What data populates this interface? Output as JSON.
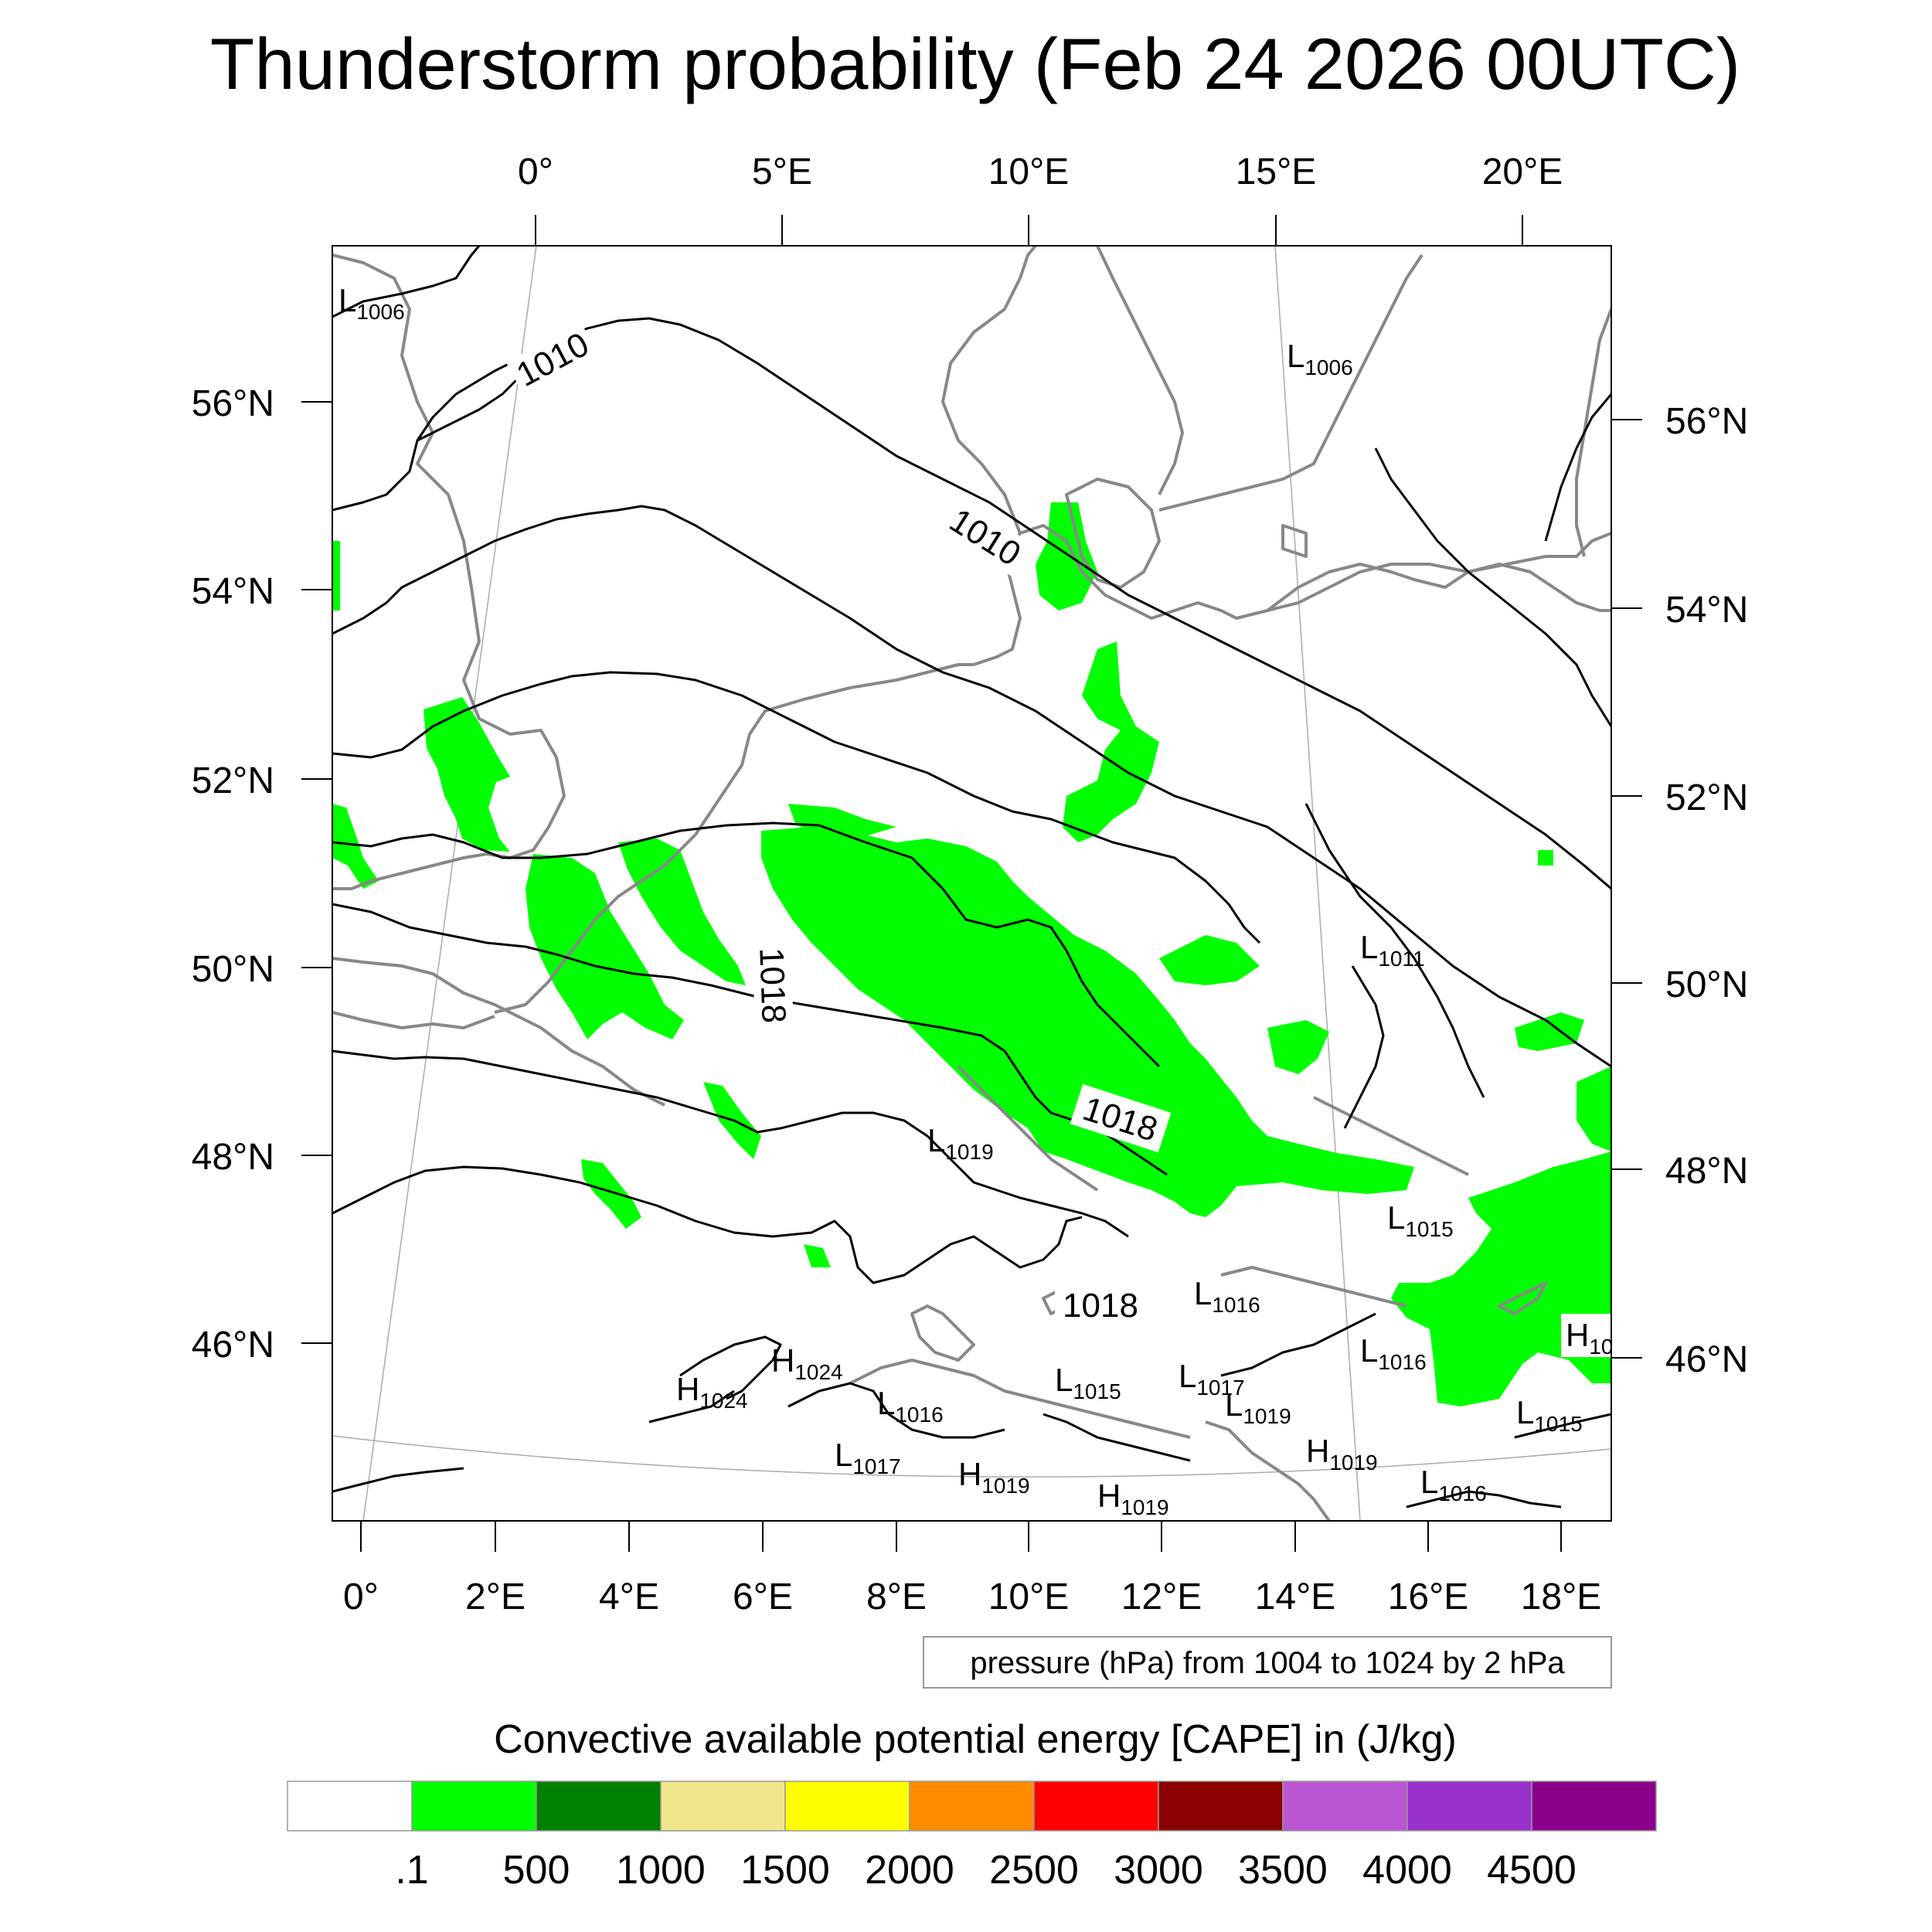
{
  "title": "Thunderstorm probability (Feb 24 2026 00UTC)",
  "top_lon_labels": [
    "0°",
    "5°E",
    "10°E",
    "15°E",
    "20°E"
  ],
  "bottom_lon_labels": [
    "0°",
    "2°E",
    "4°E",
    "6°E",
    "8°E",
    "10°E",
    "12°E",
    "14°E",
    "16°E",
    "18°E"
  ],
  "left_lat_labels": [
    "56°N",
    "54°N",
    "52°N",
    "50°N",
    "48°N",
    "46°N"
  ],
  "right_lat_labels": [
    "56°N",
    "54°N",
    "52°N",
    "50°N",
    "48°N",
    "46°N"
  ],
  "isobar_labels": [
    "1010",
    "1010",
    "1018",
    "1018",
    "1018"
  ],
  "pressure_centers": [
    {
      "letter": "L",
      "value": "1006"
    },
    {
      "letter": "L",
      "value": "1006"
    },
    {
      "letter": "L",
      "value": "1011"
    },
    {
      "letter": "L",
      "value": "1019"
    },
    {
      "letter": "L",
      "value": "1015"
    },
    {
      "letter": "L",
      "value": "1016"
    },
    {
      "letter": "H",
      "value": "1024"
    },
    {
      "letter": "H",
      "value": "1024"
    },
    {
      "letter": "L",
      "value": "1016"
    },
    {
      "letter": "L",
      "value": "1015"
    },
    {
      "letter": "L",
      "value": "1017"
    },
    {
      "letter": "L",
      "value": "1019"
    },
    {
      "letter": "L",
      "value": "1016"
    },
    {
      "letter": "L",
      "value": "1017"
    },
    {
      "letter": "H",
      "value": "1019"
    },
    {
      "letter": "H",
      "value": "1019"
    },
    {
      "letter": "H",
      "value": "1019"
    },
    {
      "letter": "L",
      "value": "1016"
    },
    {
      "letter": "L",
      "value": "1015"
    },
    {
      "letter": "H",
      "value": "10"
    }
  ],
  "info_box": "pressure (hPa) from 1004 to 1024 by 2 hPa",
  "colorbar": {
    "title": "Convective available potential energy [CAPE] in (J/kg)",
    "colors": [
      "#ffffff",
      "#00ff00",
      "#008000",
      "#f0e68c",
      "#ffff00",
      "#ff8c00",
      "#ff0000",
      "#8b0000",
      "#ba55d3",
      "#9932cc",
      "#8b008b"
    ],
    "labels": [
      ".1",
      "500",
      "1000",
      "1500",
      "2000",
      "2500",
      "3000",
      "3500",
      "4000",
      "4500"
    ]
  },
  "cape_color": "#00ff00"
}
